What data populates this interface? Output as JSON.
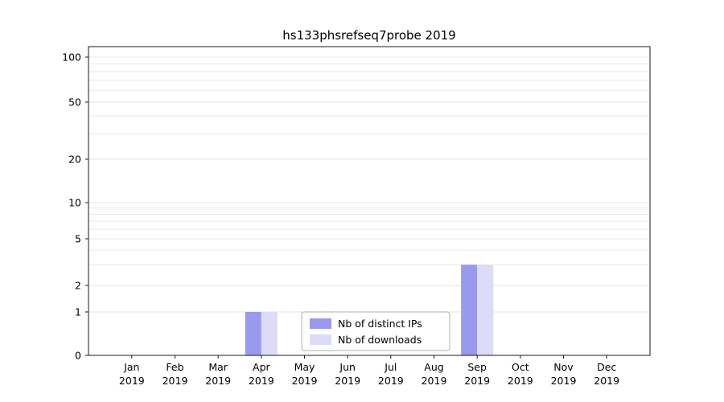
{
  "title": "hs133phsrefseq7probe 2019",
  "chart_data": {
    "type": "bar",
    "title": "hs133phsrefseq7probe 2019",
    "categories": [
      "Jan",
      "Feb",
      "Mar",
      "Apr",
      "May",
      "Jun",
      "Jul",
      "Aug",
      "Sep",
      "Oct",
      "Nov",
      "Dec"
    ],
    "year": "2019",
    "series": [
      {
        "name": "Nb of distinct IPs",
        "color": "#9999ee",
        "values": [
          0,
          0,
          0,
          1,
          0,
          0,
          0,
          0,
          3,
          0,
          0,
          0
        ]
      },
      {
        "name": "Nb of downloads",
        "color": "#dcdcf8",
        "values": [
          0,
          0,
          0,
          1,
          0,
          0,
          0,
          0,
          3,
          0,
          0,
          0
        ]
      }
    ],
    "yticks": [
      100,
      50,
      20,
      10,
      5,
      2,
      1,
      0
    ],
    "ylim": [
      0,
      120
    ],
    "yscale": "symlog-like",
    "grid": "horizontal",
    "legend_position": "bottom-center",
    "legend_labels": [
      "Nb of distinct IPs",
      "Nb of downloads"
    ]
  },
  "colors": {
    "grid": "#e6e6e6",
    "axis_frame": "#1a1a1a",
    "tick": "#1a1a1a",
    "legend_border": "#b0b0b0",
    "background": "#ffffff",
    "bar_ips": "#9999ee",
    "bar_downloads": "#dcdcf8"
  }
}
